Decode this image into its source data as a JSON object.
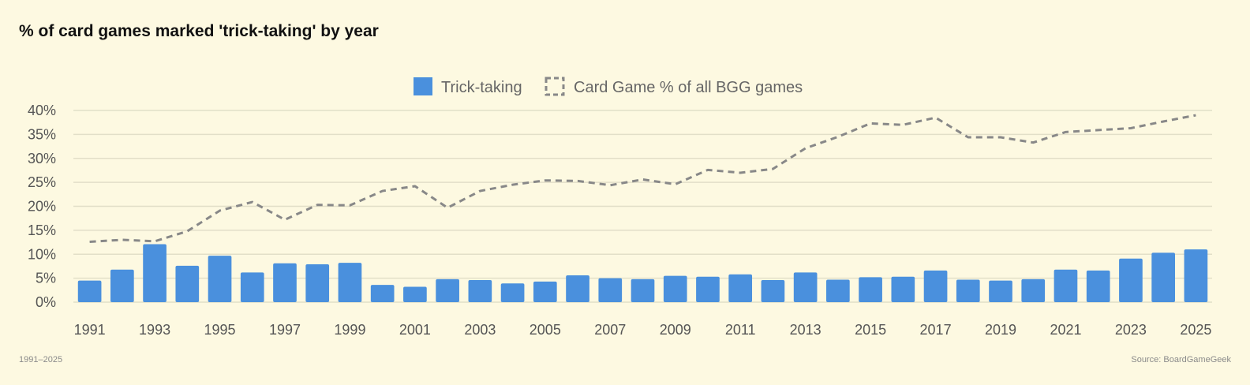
{
  "title": "% of card games marked 'trick-taking' by year",
  "footer": {
    "range": "1991–2025",
    "source": "Source: BoardGameGeek"
  },
  "colors": {
    "background": "#fdf9e1",
    "bar": "#4a90dd",
    "line": "#888888",
    "grid": "#e2dfc8"
  },
  "chart_data": {
    "type": "bar",
    "title": "% of card games marked 'trick-taking' by year",
    "legend_position": "top-center",
    "grid": true,
    "ylim": [
      0,
      40
    ],
    "y_ticks": [
      "0%",
      "5%",
      "10%",
      "15%",
      "20%",
      "25%",
      "30%",
      "35%",
      "40%"
    ],
    "y_tick_values": [
      0,
      5,
      10,
      15,
      20,
      25,
      30,
      35,
      40
    ],
    "x_tick_labels": [
      "1991",
      "1993",
      "1995",
      "1997",
      "1999",
      "2001",
      "2003",
      "2005",
      "2007",
      "2009",
      "2011",
      "2013",
      "2015",
      "2017",
      "2019",
      "2021",
      "2023",
      "2025"
    ],
    "categories": [
      "1991",
      "1992",
      "1993",
      "1994",
      "1995",
      "1996",
      "1997",
      "1998",
      "1999",
      "2000",
      "2001",
      "2002",
      "2003",
      "2004",
      "2005",
      "2006",
      "2007",
      "2008",
      "2009",
      "2010",
      "2011",
      "2012",
      "2013",
      "2014",
      "2015",
      "2016",
      "2017",
      "2018",
      "2019",
      "2020",
      "2021",
      "2022",
      "2023",
      "2024",
      "2025"
    ],
    "series": [
      {
        "name": "Trick-taking",
        "type": "bar",
        "values": [
          4.5,
          6.8,
          12.1,
          7.6,
          9.7,
          6.2,
          8.1,
          7.9,
          8.2,
          3.6,
          3.2,
          4.8,
          4.6,
          3.9,
          4.3,
          5.6,
          5.0,
          4.8,
          5.5,
          5.3,
          5.8,
          4.6,
          6.2,
          4.7,
          5.2,
          5.3,
          6.6,
          4.7,
          4.5,
          4.8,
          6.8,
          6.6,
          9.1,
          10.3,
          11.0
        ]
      },
      {
        "name": "Card Game % of all BGG games",
        "type": "line-dashed",
        "values": [
          12.6,
          13.0,
          12.7,
          14.8,
          19.1,
          20.9,
          17.2,
          20.3,
          20.2,
          23.2,
          24.2,
          19.7,
          23.2,
          24.5,
          25.4,
          25.3,
          24.4,
          25.6,
          24.6,
          27.6,
          27.0,
          27.8,
          32.1,
          34.5,
          37.3,
          37.0,
          38.5,
          34.4,
          34.4,
          33.3,
          35.5,
          35.9,
          36.3,
          37.7,
          39.0
        ]
      }
    ]
  }
}
